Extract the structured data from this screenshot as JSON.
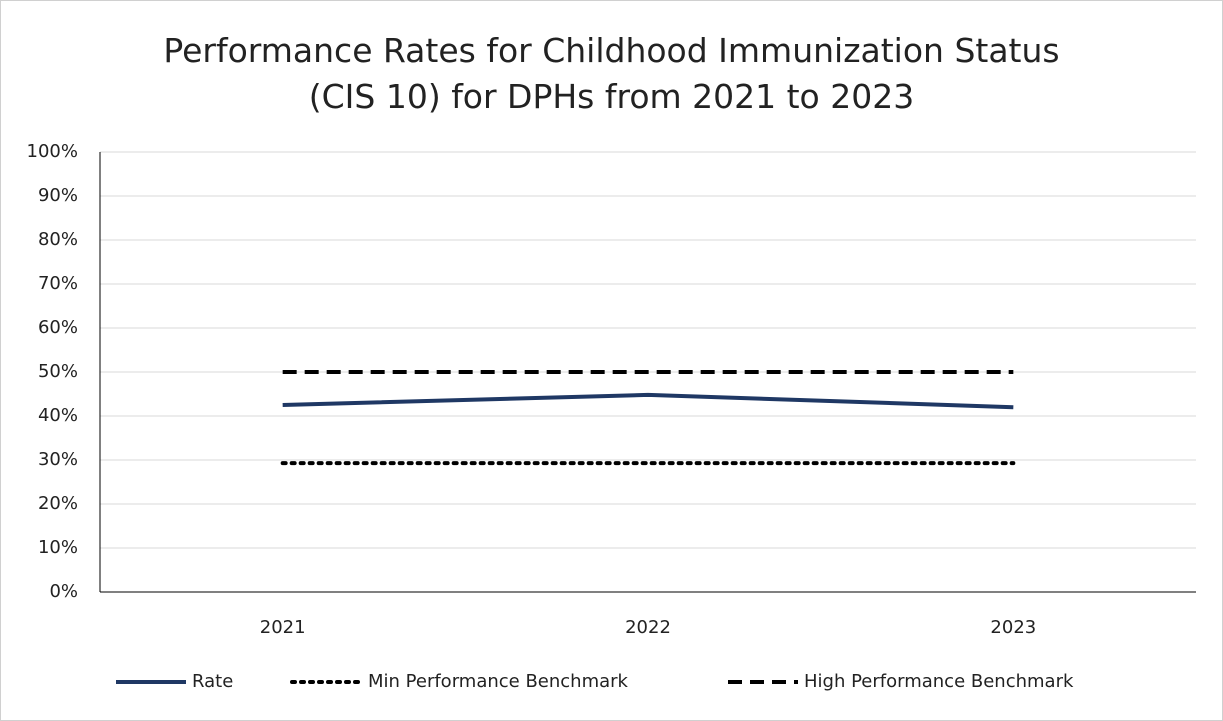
{
  "chart_data": {
    "type": "line",
    "title": "Performance Rates for Childhood Immunization Status (CIS 10) for DPHs from 2021 to 2023",
    "categories": [
      "2021",
      "2022",
      "2023"
    ],
    "series": [
      {
        "name": "Rate",
        "color": "#1f3864",
        "style": "solid",
        "values": [
          42.5,
          44.8,
          42.0
        ]
      },
      {
        "name": "Min Performance Benchmark",
        "color": "#000000",
        "style": "dotted",
        "values": [
          29.3,
          29.3,
          29.3
        ]
      },
      {
        "name": "High Performance Benchmark",
        "color": "#000000",
        "style": "dashed",
        "values": [
          50,
          50,
          50
        ]
      }
    ],
    "ylim": [
      0,
      100
    ],
    "yticks": [
      {
        "value": 0,
        "label": "0%"
      },
      {
        "value": 10,
        "label": "10%"
      },
      {
        "value": 20,
        "label": "20%"
      },
      {
        "value": 30,
        "label": "30%"
      },
      {
        "value": 40,
        "label": "40%"
      },
      {
        "value": 50,
        "label": "50%"
      },
      {
        "value": 60,
        "label": "60%"
      },
      {
        "value": 70,
        "label": "70%"
      },
      {
        "value": 80,
        "label": "80%"
      },
      {
        "value": 90,
        "label": "90%"
      },
      {
        "value": 100,
        "label": "100%"
      }
    ],
    "grid": true,
    "legend": "bottom"
  }
}
